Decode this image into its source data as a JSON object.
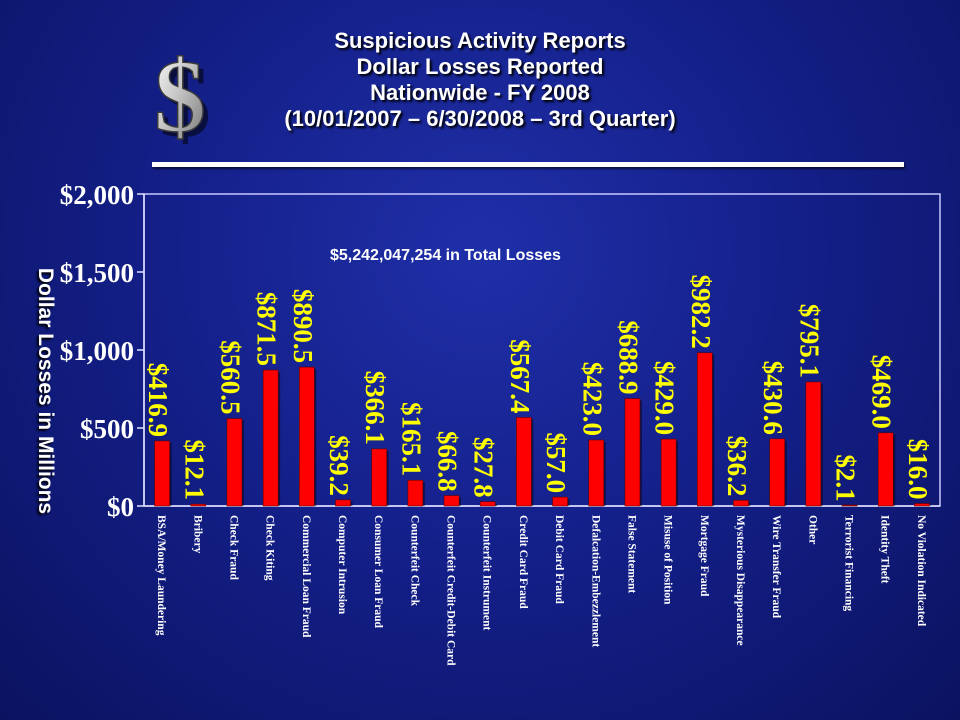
{
  "title_lines": [
    "Suspicious Activity Reports",
    "Dollar Losses Reported",
    "Nationwide -  FY 2008",
    "(10/01/2007 – 6/30/2008 – 3rd Quarter)"
  ],
  "logo_symbol": "$",
  "colors": {
    "background": "#14208a",
    "bar": "#ff0000",
    "value_label": "#ffff00",
    "axis_text": "#ffffff",
    "category_text": "#ffffff"
  },
  "chart_data": {
    "type": "bar",
    "ylabel": "Dollar Losses in Millions",
    "annotation": "$5,242,047,254 in Total Losses",
    "ylim": [
      0,
      2000
    ],
    "yticks": [
      0,
      500,
      1000,
      1500,
      2000
    ],
    "ytick_labels": [
      "$0",
      "$500",
      "$1,000",
      "$1,500",
      "$2,000"
    ],
    "grid": false,
    "categories": [
      "BSA/Money Laundering",
      "Bribery",
      "Check Fraud",
      "Check Kiting",
      "Commercial Loan Fraud",
      "Computer Intrusion",
      "Consumer Loan Fraud",
      "Counterfeit Check",
      "Counterfeit Credit-Debit Card",
      "Counterfeit Instrument",
      "Credit Card Fraud",
      "Debit Card Fraud",
      "Defalcation-Embezzlement",
      "False Statement",
      "Misuse of Position",
      "Mortgage Fraud",
      "Mysterious Disappearance",
      "Wire Transfer Fraud",
      "Other",
      "Terrorist Financing",
      "Identity Theft",
      "No Violation Indicated"
    ],
    "values": [
      416.9,
      12.1,
      560.5,
      871.5,
      890.5,
      39.2,
      366.1,
      165.1,
      66.8,
      27.8,
      567.4,
      57.0,
      423.0,
      688.9,
      429.0,
      982.2,
      36.2,
      430.6,
      795.1,
      2.1,
      469.0,
      16.0
    ],
    "value_labels": [
      "$416.9",
      "$12.1",
      "$560.5",
      "$871.5",
      "$890.5",
      "$39.2",
      "$366.1",
      "$165.1",
      "$66.8",
      "$27.8",
      "$567.4",
      "$57.0",
      "$423.0",
      "$688.9",
      "$429.0",
      "$982.2",
      "$36.2",
      "$430.6",
      "$795.1",
      "$2.1",
      "$469.0",
      "$16.0"
    ]
  }
}
